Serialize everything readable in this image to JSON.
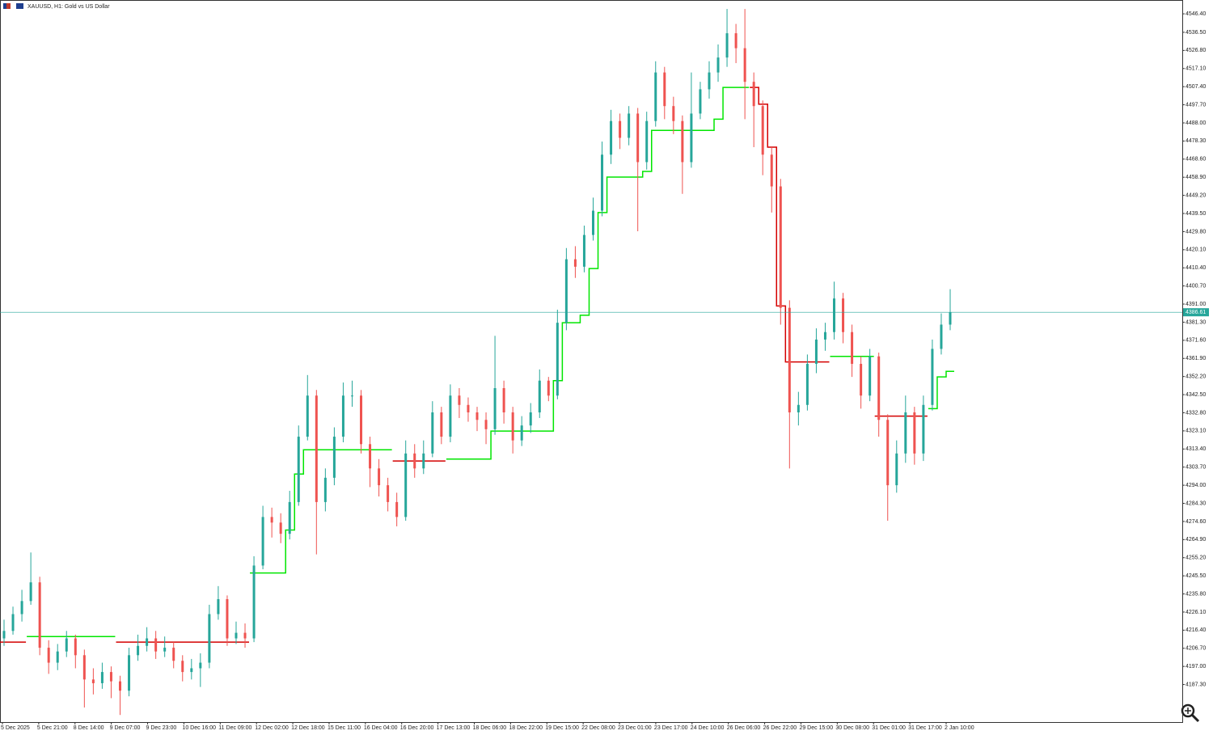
{
  "chart_data": {
    "type": "candlestick",
    "title": "XAUUSD, H1:  Gold vs US Dollar",
    "up_color": "#26a69a",
    "down_color": "#ef5350",
    "ylim": [
      4167.2,
      4553.8
    ],
    "yticks": [
      {
        "value": 4546.4,
        "label": "4546.40"
      },
      {
        "value": 4536.5,
        "label": "4536.50"
      },
      {
        "value": 4526.8,
        "label": "4526.80"
      },
      {
        "value": 4517.1,
        "label": "4517.10"
      },
      {
        "value": 4507.4,
        "label": "4507.40"
      },
      {
        "value": 4497.7,
        "label": "4497.70"
      },
      {
        "value": 4488.0,
        "label": "4488.00"
      },
      {
        "value": 4478.3,
        "label": "4478.30"
      },
      {
        "value": 4468.6,
        "label": "4468.60"
      },
      {
        "value": 4458.9,
        "label": "4458.90"
      },
      {
        "value": 4449.2,
        "label": "4449.20"
      },
      {
        "value": 4439.5,
        "label": "4439.50"
      },
      {
        "value": 4429.8,
        "label": "4429.80"
      },
      {
        "value": 4420.1,
        "label": "4420.10"
      },
      {
        "value": 4410.4,
        "label": "4410.40"
      },
      {
        "value": 4400.7,
        "label": "4400.70"
      },
      {
        "value": 4391.0,
        "label": "4391.00"
      },
      {
        "value": 4381.3,
        "label": "4381.30"
      },
      {
        "value": 4371.6,
        "label": "4371.60"
      },
      {
        "value": 4361.9,
        "label": "4361.90"
      },
      {
        "value": 4352.2,
        "label": "4352.20"
      },
      {
        "value": 4342.5,
        "label": "4342.50"
      },
      {
        "value": 4332.8,
        "label": "4332.80"
      },
      {
        "value": 4323.1,
        "label": "4323.10"
      },
      {
        "value": 4313.4,
        "label": "4313.40"
      },
      {
        "value": 4303.7,
        "label": "4303.70"
      },
      {
        "value": 4294.0,
        "label": "4294.00"
      },
      {
        "value": 4284.3,
        "label": "4284.30"
      },
      {
        "value": 4274.6,
        "label": "4274.60"
      },
      {
        "value": 4264.9,
        "label": "4264.90"
      },
      {
        "value": 4255.2,
        "label": "4255.20"
      },
      {
        "value": 4245.5,
        "label": "4245.50"
      },
      {
        "value": 4235.8,
        "label": "4235.80"
      },
      {
        "value": 4226.1,
        "label": "4226.10"
      },
      {
        "value": 4216.4,
        "label": "4216.40"
      },
      {
        "value": 4206.7,
        "label": "4206.70"
      },
      {
        "value": 4197.0,
        "label": "4197.00"
      },
      {
        "value": 4187.3,
        "label": "4187.30"
      }
    ],
    "x_labels": [
      "5 Dec 2025",
      "5 Dec 21:00",
      "8 Dec 14:00",
      "9 Dec 07:00",
      "9 Dec 23:00",
      "10 Dec 16:00",
      "11 Dec 09:00",
      "12 Dec 02:00",
      "12 Dec 18:00",
      "15 Dec 11:00",
      "16 Dec 04:00",
      "16 Dec 20:00",
      "17 Dec 13:00",
      "18 Dec 06:00",
      "18 Dec 22:00",
      "19 Dec 15:00",
      "22 Dec 08:00",
      "23 Dec 01:00",
      "23 Dec 17:00",
      "24 Dec 10:00",
      "26 Dec 06:00",
      "26 Dec 22:00",
      "29 Dec 15:00",
      "30 Dec 08:00",
      "31 Dec 01:00",
      "31 Dec 17:00",
      "2 Jan 10:00"
    ],
    "current_price": 4386.61,
    "current_price_color": "#26a69a",
    "ohlc": [
      [
        4212,
        4222,
        4208,
        4216
      ],
      [
        4216,
        4229,
        4214,
        4225
      ],
      [
        4225,
        4238,
        4221,
        4232
      ],
      [
        4232,
        4258,
        4230,
        4242
      ],
      [
        4242,
        4245,
        4203,
        4207
      ],
      [
        4207,
        4211,
        4193,
        4199
      ],
      [
        4199,
        4209,
        4195,
        4205
      ],
      [
        4205,
        4216,
        4202,
        4212
      ],
      [
        4212,
        4214,
        4196,
        4203
      ],
      [
        4203,
        4206,
        4175,
        4190
      ],
      [
        4190,
        4196,
        4182,
        4188
      ],
      [
        4188,
        4199,
        4185,
        4194
      ],
      [
        4194,
        4197,
        4180,
        4189
      ],
      [
        4189,
        4192,
        4171,
        4184
      ],
      [
        4184,
        4207,
        4181,
        4203
      ],
      [
        4203,
        4214,
        4200,
        4208
      ],
      [
        4208,
        4218,
        4205,
        4212
      ],
      [
        4212,
        4216,
        4201,
        4205
      ],
      [
        4205,
        4213,
        4202,
        4207
      ],
      [
        4207,
        4210,
        4196,
        4200
      ],
      [
        4200,
        4203,
        4189,
        4194
      ],
      [
        4194,
        4201,
        4190,
        4196
      ],
      [
        4196,
        4204,
        4186,
        4199
      ],
      [
        4199,
        4230,
        4196,
        4225
      ],
      [
        4225,
        4240,
        4222,
        4233
      ],
      [
        4233,
        4235,
        4208,
        4212
      ],
      [
        4212,
        4221,
        4209,
        4215
      ],
      [
        4215,
        4220,
        4207,
        4212
      ],
      [
        4212,
        4256,
        4210,
        4251
      ],
      [
        4251,
        4283,
        4249,
        4277
      ],
      [
        4277,
        4282,
        4266,
        4274
      ],
      [
        4274,
        4279,
        4263,
        4268
      ],
      [
        4268,
        4291,
        4265,
        4285
      ],
      [
        4285,
        4326,
        4283,
        4320
      ],
      [
        4320,
        4353,
        4318,
        4342
      ],
      [
        4342,
        4345,
        4257,
        4285
      ],
      [
        4285,
        4303,
        4280,
        4298
      ],
      [
        4298,
        4325,
        4294,
        4320
      ],
      [
        4320,
        4349,
        4317,
        4342
      ],
      [
        4342,
        4350,
        4336,
        4342
      ],
      [
        4342,
        4345,
        4311,
        4316
      ],
      [
        4316,
        4320,
        4293,
        4303
      ],
      [
        4303,
        4308,
        4288,
        4294
      ],
      [
        4294,
        4298,
        4280,
        4285
      ],
      [
        4285,
        4290,
        4272,
        4277
      ],
      [
        4277,
        4318,
        4275,
        4311
      ],
      [
        4311,
        4316,
        4298,
        4303
      ],
      [
        4303,
        4318,
        4300,
        4311
      ],
      [
        4311,
        4339,
        4309,
        4333
      ],
      [
        4333,
        4336,
        4316,
        4320
      ],
      [
        4320,
        4348,
        4317,
        4342
      ],
      [
        4342,
        4346,
        4330,
        4337
      ],
      [
        4337,
        4341,
        4328,
        4333
      ],
      [
        4333,
        4336,
        4323,
        4329
      ],
      [
        4329,
        4333,
        4316,
        4324
      ],
      [
        4324,
        4374,
        4321,
        4346
      ],
      [
        4346,
        4350,
        4327,
        4333
      ],
      [
        4333,
        4336,
        4311,
        4318
      ],
      [
        4318,
        4331,
        4315,
        4326
      ],
      [
        4326,
        4338,
        4322,
        4333
      ],
      [
        4333,
        4356,
        4330,
        4350
      ],
      [
        4350,
        4352,
        4339,
        4342
      ],
      [
        4342,
        4388,
        4340,
        4381
      ],
      [
        4381,
        4421,
        4377,
        4415
      ],
      [
        4415,
        4422,
        4405,
        4411
      ],
      [
        4411,
        4433,
        4408,
        4428
      ],
      [
        4428,
        4448,
        4425,
        4441
      ],
      [
        4441,
        4478,
        4438,
        4471
      ],
      [
        4471,
        4495,
        4466,
        4489
      ],
      [
        4489,
        4493,
        4474,
        4480
      ],
      [
        4480,
        4497,
        4476,
        4493
      ],
      [
        4493,
        4496,
        4430,
        4467
      ],
      [
        4467,
        4494,
        4463,
        4489
      ],
      [
        4489,
        4521,
        4486,
        4515
      ],
      [
        4515,
        4518,
        4490,
        4497
      ],
      [
        4497,
        4502,
        4482,
        4489
      ],
      [
        4489,
        4492,
        4450,
        4467
      ],
      [
        4467,
        4515,
        4464,
        4493
      ],
      [
        4493,
        4510,
        4490,
        4506
      ],
      [
        4506,
        4521,
        4501,
        4515
      ],
      [
        4515,
        4530,
        4510,
        4523
      ],
      [
        4523,
        4549,
        4518,
        4536
      ],
      [
        4536,
        4541,
        4520,
        4528
      ],
      [
        4528,
        4549,
        4490,
        4510
      ],
      [
        4510,
        4515,
        4475,
        4497
      ],
      [
        4497,
        4500,
        4460,
        4471
      ],
      [
        4471,
        4475,
        4440,
        4454
      ],
      [
        4454,
        4458,
        4380,
        4389
      ],
      [
        4389,
        4393,
        4303,
        4333
      ],
      [
        4333,
        4344,
        4326,
        4337
      ],
      [
        4337,
        4364,
        4334,
        4359
      ],
      [
        4359,
        4378,
        4354,
        4372
      ],
      [
        4372,
        4381,
        4366,
        4376
      ],
      [
        4376,
        4403,
        4372,
        4394
      ],
      [
        4394,
        4397,
        4370,
        4376
      ],
      [
        4376,
        4380,
        4352,
        4359
      ],
      [
        4359,
        4363,
        4335,
        4342
      ],
      [
        4342,
        4367,
        4339,
        4363
      ],
      [
        4363,
        4365,
        4320,
        4329
      ],
      [
        4329,
        4332,
        4275,
        4294
      ],
      [
        4294,
        4318,
        4290,
        4311
      ],
      [
        4311,
        4342,
        4306,
        4333
      ],
      [
        4333,
        4336,
        4305,
        4311
      ],
      [
        4311,
        4342,
        4307,
        4337
      ],
      [
        4337,
        4372,
        4334,
        4367
      ],
      [
        4367,
        4386,
        4364,
        4380
      ],
      [
        4380,
        4399,
        4377,
        4386.61
      ]
    ],
    "series": [
      {
        "color": "#d40000",
        "values": [
          4210,
          4210,
          4210,
          null,
          null,
          null,
          null,
          null,
          null,
          null,
          null,
          null,
          null,
          4210,
          4210,
          4210,
          4210,
          4210,
          4210,
          4210,
          4210,
          4210,
          4210,
          4210,
          4210,
          4210,
          4210,
          4210,
          null,
          null,
          null,
          null,
          null,
          null,
          null,
          null,
          null,
          null,
          null,
          null,
          null,
          null,
          null,
          null,
          4307,
          4307,
          4307,
          4307,
          4307,
          4307,
          null,
          null,
          null,
          null,
          null,
          null,
          null,
          null,
          null,
          null,
          null,
          null,
          null,
          null,
          null,
          null,
          null,
          null,
          null,
          null,
          null,
          null,
          null,
          null,
          null,
          null,
          null,
          null,
          null,
          null,
          null,
          null,
          null,
          null,
          4507,
          4498,
          4475,
          4390,
          4360,
          4360,
          4360,
          4360,
          4360,
          null,
          null,
          null,
          null,
          null,
          4331,
          4331,
          4331,
          4331,
          4331,
          4331,
          null,
          null,
          null
        ]
      },
      {
        "color": "#00e600",
        "values": [
          null,
          null,
          null,
          4213,
          4213,
          4213,
          4213,
          4213,
          4213,
          4213,
          4213,
          4213,
          4213,
          null,
          null,
          null,
          null,
          null,
          null,
          null,
          null,
          null,
          null,
          null,
          null,
          null,
          null,
          null,
          4247,
          4247,
          4247,
          4247,
          4270,
          4300,
          4313,
          4313,
          4313,
          4313,
          4313,
          4313,
          4313,
          4313,
          4313,
          4313,
          null,
          null,
          null,
          null,
          null,
          null,
          4308,
          4308,
          4308,
          4308,
          4308,
          4323,
          4323,
          4323,
          4323,
          4323,
          4323,
          4323,
          4350,
          4381,
          4381,
          4385,
          4410,
          4440,
          4459,
          4459,
          4459,
          4459,
          4462,
          4484,
          4484,
          4484,
          4484,
          4484,
          4484,
          4484,
          4490,
          4507,
          4507,
          4507,
          null,
          null,
          null,
          null,
          null,
          null,
          null,
          null,
          null,
          4363,
          4363,
          4363,
          4363,
          4363,
          null,
          null,
          null,
          null,
          null,
          null,
          4335,
          4352,
          4355
        ]
      }
    ]
  }
}
